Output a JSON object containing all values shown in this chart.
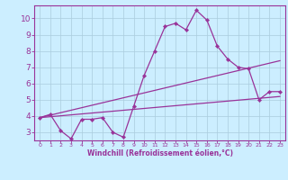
{
  "title": "",
  "xlabel": "Windchill (Refroidissement éolien,°C)",
  "ylabel": "",
  "bg_color": "#cceeff",
  "line_color": "#993399",
  "grid_color": "#aaccdd",
  "spine_color": "#993399",
  "xlim": [
    -0.5,
    23.5
  ],
  "ylim": [
    2.5,
    10.8
  ],
  "yticks": [
    3,
    4,
    5,
    6,
    7,
    8,
    9,
    10
  ],
  "xticks": [
    0,
    1,
    2,
    3,
    4,
    5,
    6,
    7,
    8,
    9,
    10,
    11,
    12,
    13,
    14,
    15,
    16,
    17,
    18,
    19,
    20,
    21,
    22,
    23
  ],
  "line1_x": [
    0,
    1,
    2,
    3,
    4,
    5,
    6,
    7,
    8,
    9,
    10,
    11,
    12,
    13,
    14,
    15,
    16,
    17,
    18,
    19,
    20,
    21,
    22,
    23
  ],
  "line1_y": [
    3.9,
    4.1,
    3.1,
    2.6,
    3.8,
    3.8,
    3.9,
    3.0,
    2.7,
    4.6,
    6.5,
    8.0,
    9.5,
    9.7,
    9.3,
    10.5,
    9.9,
    8.3,
    7.5,
    7.0,
    6.9,
    5.0,
    5.5,
    5.5
  ],
  "line2_x": [
    0,
    23
  ],
  "line2_y": [
    3.9,
    7.4
  ],
  "line3_x": [
    0,
    23
  ],
  "line3_y": [
    3.9,
    5.2
  ],
  "xlabel_fontsize": 5.5,
  "ytick_fontsize": 6.5,
  "xtick_fontsize": 4.5,
  "marker_size": 2.2,
  "line_width": 0.9
}
